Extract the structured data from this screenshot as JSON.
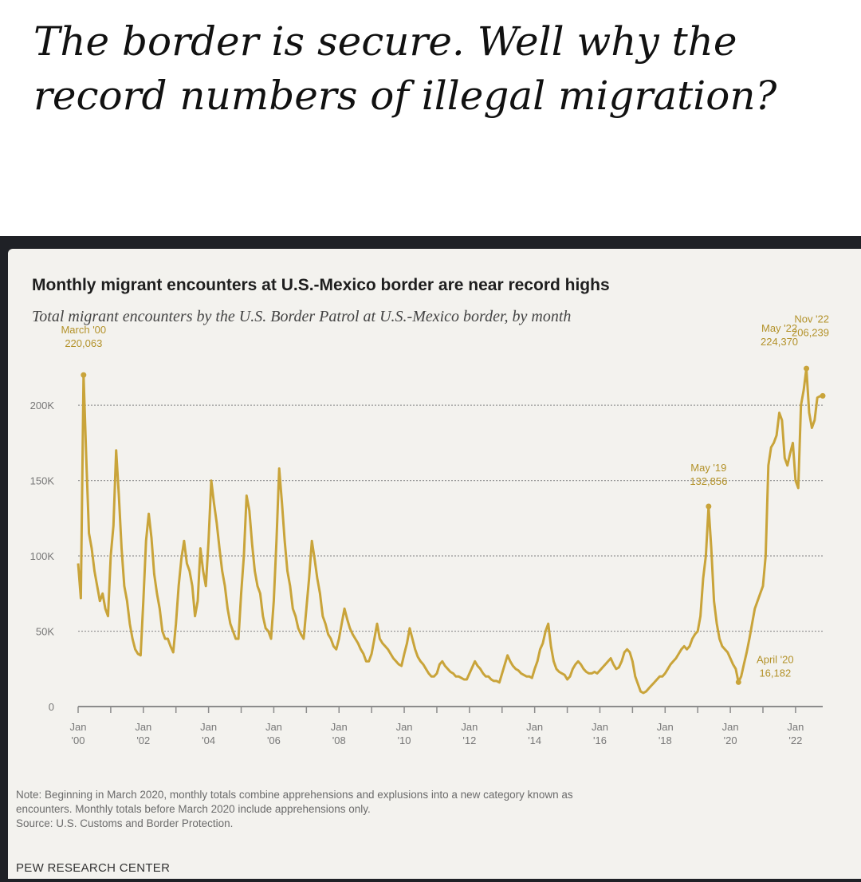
{
  "meme": {
    "caption": "The border is secure. Well why the record numbers of illegal migration?"
  },
  "chart_data": {
    "type": "line",
    "title": "Monthly migrant encounters at U.S.-Mexico border are near record highs",
    "subtitle": "Total migrant encounters by the U.S. Border Patrol at U.S.-Mexico border, by month",
    "xlabel": "",
    "ylabel": "",
    "y_ticks": [
      0,
      50000,
      100000,
      150000,
      200000
    ],
    "y_tick_labels": [
      "0",
      "50K",
      "100K",
      "150K",
      "200K"
    ],
    "ylim": [
      0,
      235000
    ],
    "x_tick_labels": [
      "Jan\n'00",
      "Jan\n'02",
      "Jan\n'04",
      "Jan\n'06",
      "Jan\n'08",
      "Jan\n'10",
      "Jan\n'12",
      "Jan\n'14",
      "Jan\n'16",
      "Jan\n'18",
      "Jan\n'20",
      "Jan\n'22"
    ],
    "x_tick_years": [
      2000,
      2002,
      2004,
      2006,
      2008,
      2010,
      2012,
      2014,
      2016,
      2018,
      2020,
      2022
    ],
    "xlim": [
      "2000-01",
      "2022-11"
    ],
    "grid": true,
    "line_color": "#c9a43a",
    "series": [
      {
        "name": "",
        "x": [
          "2000-01",
          "2000-02",
          "2000-03",
          "2000-04",
          "2000-05",
          "2000-06",
          "2000-07",
          "2000-08",
          "2000-09",
          "2000-10",
          "2000-11",
          "2000-12",
          "2001-01",
          "2001-02",
          "2001-03",
          "2001-04",
          "2001-05",
          "2001-06",
          "2001-07",
          "2001-08",
          "2001-09",
          "2001-10",
          "2001-11",
          "2001-12",
          "2002-01",
          "2002-02",
          "2002-03",
          "2002-04",
          "2002-05",
          "2002-06",
          "2002-07",
          "2002-08",
          "2002-09",
          "2002-10",
          "2002-11",
          "2002-12",
          "2003-01",
          "2003-02",
          "2003-03",
          "2003-04",
          "2003-05",
          "2003-06",
          "2003-07",
          "2003-08",
          "2003-09",
          "2003-10",
          "2003-11",
          "2003-12",
          "2004-01",
          "2004-02",
          "2004-03",
          "2004-04",
          "2004-05",
          "2004-06",
          "2004-07",
          "2004-08",
          "2004-09",
          "2004-10",
          "2004-11",
          "2004-12",
          "2005-01",
          "2005-02",
          "2005-03",
          "2005-04",
          "2005-05",
          "2005-06",
          "2005-07",
          "2005-08",
          "2005-09",
          "2005-10",
          "2005-11",
          "2005-12",
          "2006-01",
          "2006-02",
          "2006-03",
          "2006-04",
          "2006-05",
          "2006-06",
          "2006-07",
          "2006-08",
          "2006-09",
          "2006-10",
          "2006-11",
          "2006-12",
          "2007-01",
          "2007-02",
          "2007-03",
          "2007-04",
          "2007-05",
          "2007-06",
          "2007-07",
          "2007-08",
          "2007-09",
          "2007-10",
          "2007-11",
          "2007-12",
          "2008-01",
          "2008-02",
          "2008-03",
          "2008-04",
          "2008-05",
          "2008-06",
          "2008-07",
          "2008-08",
          "2008-09",
          "2008-10",
          "2008-11",
          "2008-12",
          "2009-01",
          "2009-02",
          "2009-03",
          "2009-04",
          "2009-05",
          "2009-06",
          "2009-07",
          "2009-08",
          "2009-09",
          "2009-10",
          "2009-11",
          "2009-12",
          "2010-01",
          "2010-02",
          "2010-03",
          "2010-04",
          "2010-05",
          "2010-06",
          "2010-07",
          "2010-08",
          "2010-09",
          "2010-10",
          "2010-11",
          "2010-12",
          "2011-01",
          "2011-02",
          "2011-03",
          "2011-04",
          "2011-05",
          "2011-06",
          "2011-07",
          "2011-08",
          "2011-09",
          "2011-10",
          "2011-11",
          "2011-12",
          "2012-01",
          "2012-02",
          "2012-03",
          "2012-04",
          "2012-05",
          "2012-06",
          "2012-07",
          "2012-08",
          "2012-09",
          "2012-10",
          "2012-11",
          "2012-12",
          "2013-01",
          "2013-02",
          "2013-03",
          "2013-04",
          "2013-05",
          "2013-06",
          "2013-07",
          "2013-08",
          "2013-09",
          "2013-10",
          "2013-11",
          "2013-12",
          "2014-01",
          "2014-02",
          "2014-03",
          "2014-04",
          "2014-05",
          "2014-06",
          "2014-07",
          "2014-08",
          "2014-09",
          "2014-10",
          "2014-11",
          "2014-12",
          "2015-01",
          "2015-02",
          "2015-03",
          "2015-04",
          "2015-05",
          "2015-06",
          "2015-07",
          "2015-08",
          "2015-09",
          "2015-10",
          "2015-11",
          "2015-12",
          "2016-01",
          "2016-02",
          "2016-03",
          "2016-04",
          "2016-05",
          "2016-06",
          "2016-07",
          "2016-08",
          "2016-09",
          "2016-10",
          "2016-11",
          "2016-12",
          "2017-01",
          "2017-02",
          "2017-03",
          "2017-04",
          "2017-05",
          "2017-06",
          "2017-07",
          "2017-08",
          "2017-09",
          "2017-10",
          "2017-11",
          "2017-12",
          "2018-01",
          "2018-02",
          "2018-03",
          "2018-04",
          "2018-05",
          "2018-06",
          "2018-07",
          "2018-08",
          "2018-09",
          "2018-10",
          "2018-11",
          "2018-12",
          "2019-01",
          "2019-02",
          "2019-03",
          "2019-04",
          "2019-05",
          "2019-06",
          "2019-07",
          "2019-08",
          "2019-09",
          "2019-10",
          "2019-11",
          "2019-12",
          "2020-01",
          "2020-02",
          "2020-03",
          "2020-04",
          "2020-05",
          "2020-06",
          "2020-07",
          "2020-08",
          "2020-09",
          "2020-10",
          "2020-11",
          "2020-12",
          "2021-01",
          "2021-02",
          "2021-03",
          "2021-04",
          "2021-05",
          "2021-06",
          "2021-07",
          "2021-08",
          "2021-09",
          "2021-10",
          "2021-11",
          "2021-12",
          "2022-01",
          "2022-02",
          "2022-03",
          "2022-04",
          "2022-05",
          "2022-06",
          "2022-07",
          "2022-08",
          "2022-09",
          "2022-10",
          "2022-11"
        ],
        "values": [
          95000,
          72000,
          220063,
          165000,
          115000,
          105000,
          90000,
          80000,
          70000,
          75000,
          65000,
          60000,
          100000,
          120000,
          170000,
          140000,
          105000,
          80000,
          70000,
          55000,
          45000,
          38000,
          35000,
          34000,
          70000,
          110000,
          128000,
          112000,
          88000,
          75000,
          65000,
          50000,
          45000,
          45000,
          40000,
          36000,
          55000,
          80000,
          98000,
          110000,
          95000,
          90000,
          80000,
          60000,
          70000,
          105000,
          90000,
          80000,
          110000,
          150000,
          135000,
          122000,
          105000,
          90000,
          80000,
          65000,
          55000,
          50000,
          45000,
          45000,
          75000,
          100000,
          140000,
          130000,
          108000,
          90000,
          80000,
          75000,
          60000,
          52000,
          50000,
          45000,
          70000,
          110000,
          158000,
          135000,
          110000,
          90000,
          80000,
          65000,
          60000,
          52000,
          48000,
          45000,
          65000,
          85000,
          110000,
          98000,
          85000,
          75000,
          60000,
          55000,
          48000,
          45000,
          40000,
          38000,
          45000,
          55000,
          65000,
          58000,
          52000,
          48000,
          45000,
          42000,
          38000,
          35000,
          30000,
          30000,
          35000,
          45000,
          55000,
          45000,
          42000,
          40000,
          38000,
          35000,
          32000,
          30000,
          28000,
          27000,
          35000,
          42000,
          52000,
          45000,
          38000,
          33000,
          30000,
          28000,
          25000,
          22000,
          20000,
          20000,
          22000,
          28000,
          30000,
          27000,
          25000,
          23000,
          22000,
          20000,
          20000,
          19000,
          18000,
          18000,
          22000,
          26000,
          30000,
          27000,
          25000,
          22000,
          20000,
          20000,
          18000,
          17000,
          17000,
          16000,
          22000,
          28000,
          34000,
          30000,
          27000,
          25000,
          24000,
          22000,
          21000,
          20000,
          20000,
          19000,
          25000,
          30000,
          38000,
          42000,
          50000,
          55000,
          40000,
          30000,
          25000,
          23000,
          22000,
          21000,
          18000,
          20000,
          25000,
          28000,
          30000,
          28000,
          25000,
          23000,
          22000,
          22000,
          23000,
          22000,
          24000,
          26000,
          28000,
          30000,
          32000,
          28000,
          25000,
          26000,
          30000,
          36000,
          38000,
          36000,
          30000,
          20000,
          15000,
          10000,
          9000,
          10000,
          12000,
          14000,
          16000,
          18000,
          20000,
          20000,
          22000,
          25000,
          28000,
          30000,
          32000,
          35000,
          38000,
          40000,
          38000,
          40000,
          45000,
          48000,
          50000,
          60000,
          85000,
          100000,
          132856,
          105000,
          70000,
          55000,
          45000,
          40000,
          38000,
          36000,
          32000,
          28000,
          25000,
          16182,
          20000,
          28000,
          36000,
          45000,
          55000,
          65000,
          70000,
          75000,
          80000,
          100000,
          160000,
          172000,
          175000,
          180000,
          195000,
          190000,
          165000,
          160000,
          168000,
          175000,
          150000,
          145000,
          200000,
          210000,
          224370,
          195000,
          185000,
          190000,
          205000,
          206000,
          206239
        ]
      }
    ],
    "annotations": [
      {
        "label": "March '00",
        "value_label": "220,063",
        "x": "2000-03",
        "y": 220063
      },
      {
        "label": "May '19",
        "value_label": "132,856",
        "x": "2019-05",
        "y": 132856
      },
      {
        "label": "April '20",
        "value_label": "16,182",
        "x": "2020-04",
        "y": 16182
      },
      {
        "label": "May '22",
        "value_label": "224,370",
        "x": "2022-05",
        "y": 224370
      },
      {
        "label": "Nov '22",
        "value_label": "206,239",
        "x": "2022-11",
        "y": 206239
      }
    ]
  },
  "note": {
    "text": "Note: Beginning in March 2020, monthly totals combine apprehensions and explusions into a new category known as\nencounters. Monthly totals before March 2020 include apprehensions only.",
    "source": "Source: U.S. Customs and Border Protection."
  },
  "brand": "PEW RESEARCH CENTER"
}
